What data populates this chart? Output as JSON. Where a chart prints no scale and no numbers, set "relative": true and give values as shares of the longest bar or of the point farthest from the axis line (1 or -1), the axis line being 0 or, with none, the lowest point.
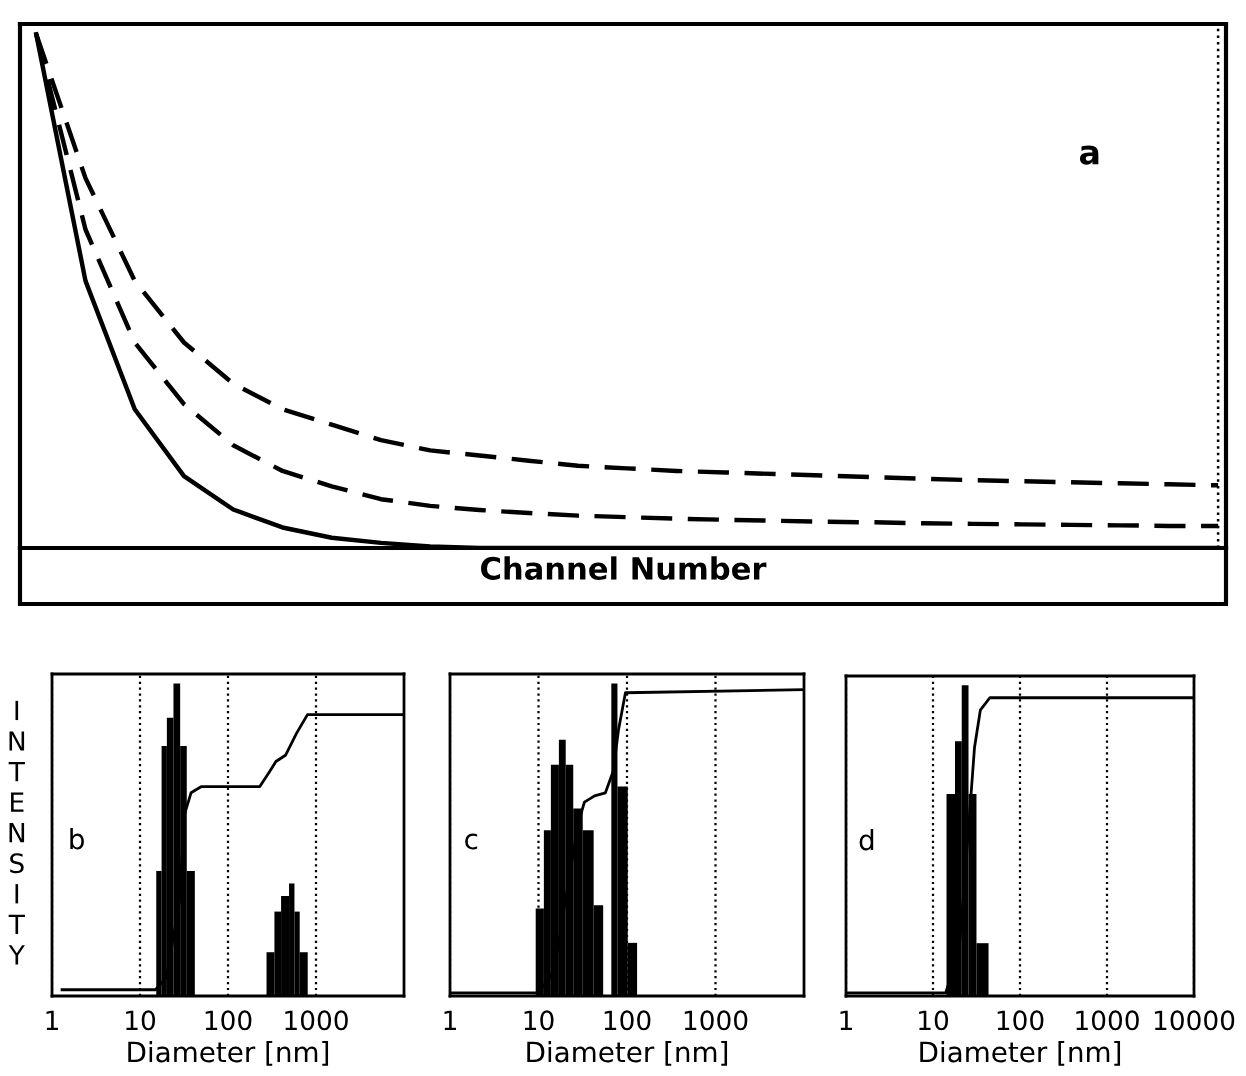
{
  "chart_data": [
    {
      "type": "line",
      "relative": true,
      "xlabel": "Channel Number",
      "annotations": [
        "a"
      ],
      "tick_labels": false,
      "categories": [
        null,
        null,
        null,
        null,
        null,
        null,
        null,
        null,
        null,
        null,
        null,
        null,
        null,
        null,
        null,
        null,
        null,
        null,
        null,
        null,
        null,
        null,
        null,
        null,
        null
      ],
      "series": [
        {
          "color": "#000000",
          "line_style": "solid",
          "values": [
            1,
            0.52,
            0.27,
            0.14,
            0.075,
            0.04,
            0.02,
            0.01,
            0.003,
            0,
            0,
            0,
            0,
            0,
            0,
            0,
            0,
            0,
            0,
            0,
            0,
            0,
            0,
            0,
            0
          ]
        },
        {
          "color": "#000000",
          "line_style": "dashed",
          "values": [
            1,
            0.62,
            0.4,
            0.28,
            0.2,
            0.15,
            0.12,
            0.095,
            0.082,
            0.074,
            0.068,
            0.063,
            0.06,
            0.057,
            0.055,
            0.053,
            0.051,
            0.05,
            0.048,
            0.047,
            0.046,
            0.045,
            0.044,
            0.043,
            0.043
          ]
        },
        {
          "color": "#000000",
          "line_style": "dashed",
          "values": [
            1,
            0.72,
            0.52,
            0.4,
            0.32,
            0.27,
            0.24,
            0.21,
            0.19,
            0.18,
            0.17,
            0.16,
            0.155,
            0.15,
            0.147,
            0.144,
            0.141,
            0.138,
            0.135,
            0.132,
            0.13,
            0.128,
            0.126,
            0.124,
            0.122
          ]
        }
      ]
    },
    {
      "type": "histogram",
      "relative": true,
      "log": "x",
      "xlim": [
        1,
        10000
      ],
      "xticks": [
        1,
        10,
        100,
        1000
      ],
      "grid": "x",
      "tick_labels": "x",
      "xlabel": "Diameter [nm]",
      "ylabel": "INTENSITY",
      "annotations": [
        "b"
      ],
      "series": [
        {
          "type": "histogram",
          "color": "#000000",
          "bins": [
            15.3,
            17.6,
            20.2,
            24,
            28.6,
            34,
            42,
            274,
            337,
            401,
            494,
            569,
            653,
            805
          ],
          "values": [
            0.4,
            0.8,
            0.89,
            1.0,
            0.8,
            0.4,
            0,
            0.14,
            0.27,
            0.32,
            0.36,
            0.27,
            0.14
          ]
        },
        {
          "type": "line",
          "color": "#000000",
          "x": [
            1.3,
            15,
            20,
            28,
            32,
            38,
            50,
            230,
            300,
            350,
            450,
            600,
            800,
            10000
          ],
          "values": [
            0.02,
            0.02,
            0.06,
            0.3,
            0.58,
            0.65,
            0.67,
            0.67,
            0.72,
            0.75,
            0.77,
            0.84,
            0.9,
            0.9
          ]
        }
      ]
    },
    {
      "type": "histogram",
      "relative": true,
      "log": "x",
      "xlim": [
        1,
        10000
      ],
      "xticks": [
        1,
        10,
        100,
        1000
      ],
      "grid": "x",
      "tick_labels": "x",
      "xlabel": "Diameter [nm]",
      "annotations": [
        "c"
      ],
      "series": [
        {
          "type": "histogram",
          "color": "#000000",
          "bins": [
            9.3,
            11.5,
            13.8,
            17,
            20.3,
            24.7,
            31.6,
            42,
            53.8,
            66.5,
            78,
            102,
            130
          ],
          "values": [
            0.28,
            0.53,
            0.74,
            0.82,
            0.74,
            0.6,
            0.53,
            0.29,
            0,
            1.0,
            0.67,
            0.17
          ]
        },
        {
          "type": "line",
          "color": "#000000",
          "x": [
            1,
            10,
            15,
            20,
            28,
            33,
            43,
            57,
            70,
            80,
            96,
            10000
          ],
          "values": [
            0.01,
            0.01,
            0.08,
            0.3,
            0.55,
            0.62,
            0.64,
            0.65,
            0.72,
            0.85,
            0.97,
            0.98
          ]
        }
      ]
    },
    {
      "type": "histogram",
      "relative": true,
      "log": "x",
      "xlim": [
        1,
        10000
      ],
      "xticks": [
        1,
        10,
        100,
        1000,
        10000
      ],
      "grid": "x",
      "tick_labels": "x",
      "xlabel": "Diameter [nm]",
      "annotations": [
        "d"
      ],
      "series": [
        {
          "type": "histogram",
          "color": "#000000",
          "bins": [
            14.3,
            17.9,
            21.4,
            25.6,
            31.6,
            43.5
          ],
          "values": [
            0.65,
            0.82,
            1.0,
            0.65,
            0.17
          ]
        },
        {
          "type": "line",
          "color": "#000000",
          "x": [
            1,
            14,
            20,
            25,
            30,
            35,
            45,
            10000
          ],
          "values": [
            0.01,
            0.01,
            0.15,
            0.5,
            0.8,
            0.92,
            0.96,
            0.96
          ]
        }
      ]
    }
  ]
}
